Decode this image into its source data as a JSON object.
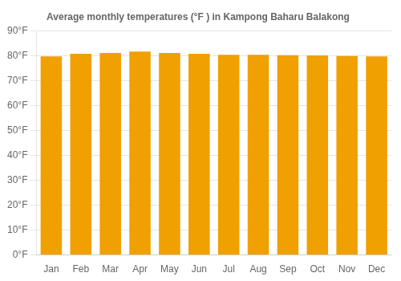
{
  "chart_data": {
    "type": "bar",
    "title": "Average monthly temperatures (°F ) in Kampong Baharu Balakong",
    "categories": [
      "Jan",
      "Feb",
      "Mar",
      "Apr",
      "May",
      "Jun",
      "Jul",
      "Aug",
      "Sep",
      "Oct",
      "Nov",
      "Dec"
    ],
    "values": [
      79.7,
      80.8,
      81.1,
      81.7,
      81.1,
      80.8,
      80.4,
      80.4,
      80.2,
      80.1,
      79.9,
      79.7
    ],
    "color": "#F0A000",
    "ylim": [
      0,
      90
    ],
    "yticks": [
      {
        "value": 0,
        "label": "0°F"
      },
      {
        "value": 10,
        "label": "10°F"
      },
      {
        "value": 20,
        "label": "20°F"
      },
      {
        "value": 30,
        "label": "30°F"
      },
      {
        "value": 40,
        "label": "40°F"
      },
      {
        "value": 50,
        "label": "50°F"
      },
      {
        "value": 60,
        "label": "60°F"
      },
      {
        "value": 70,
        "label": "70°F"
      },
      {
        "value": 80,
        "label": "80°F"
      },
      {
        "value": 90,
        "label": "90°F"
      }
    ],
    "grid": true
  }
}
